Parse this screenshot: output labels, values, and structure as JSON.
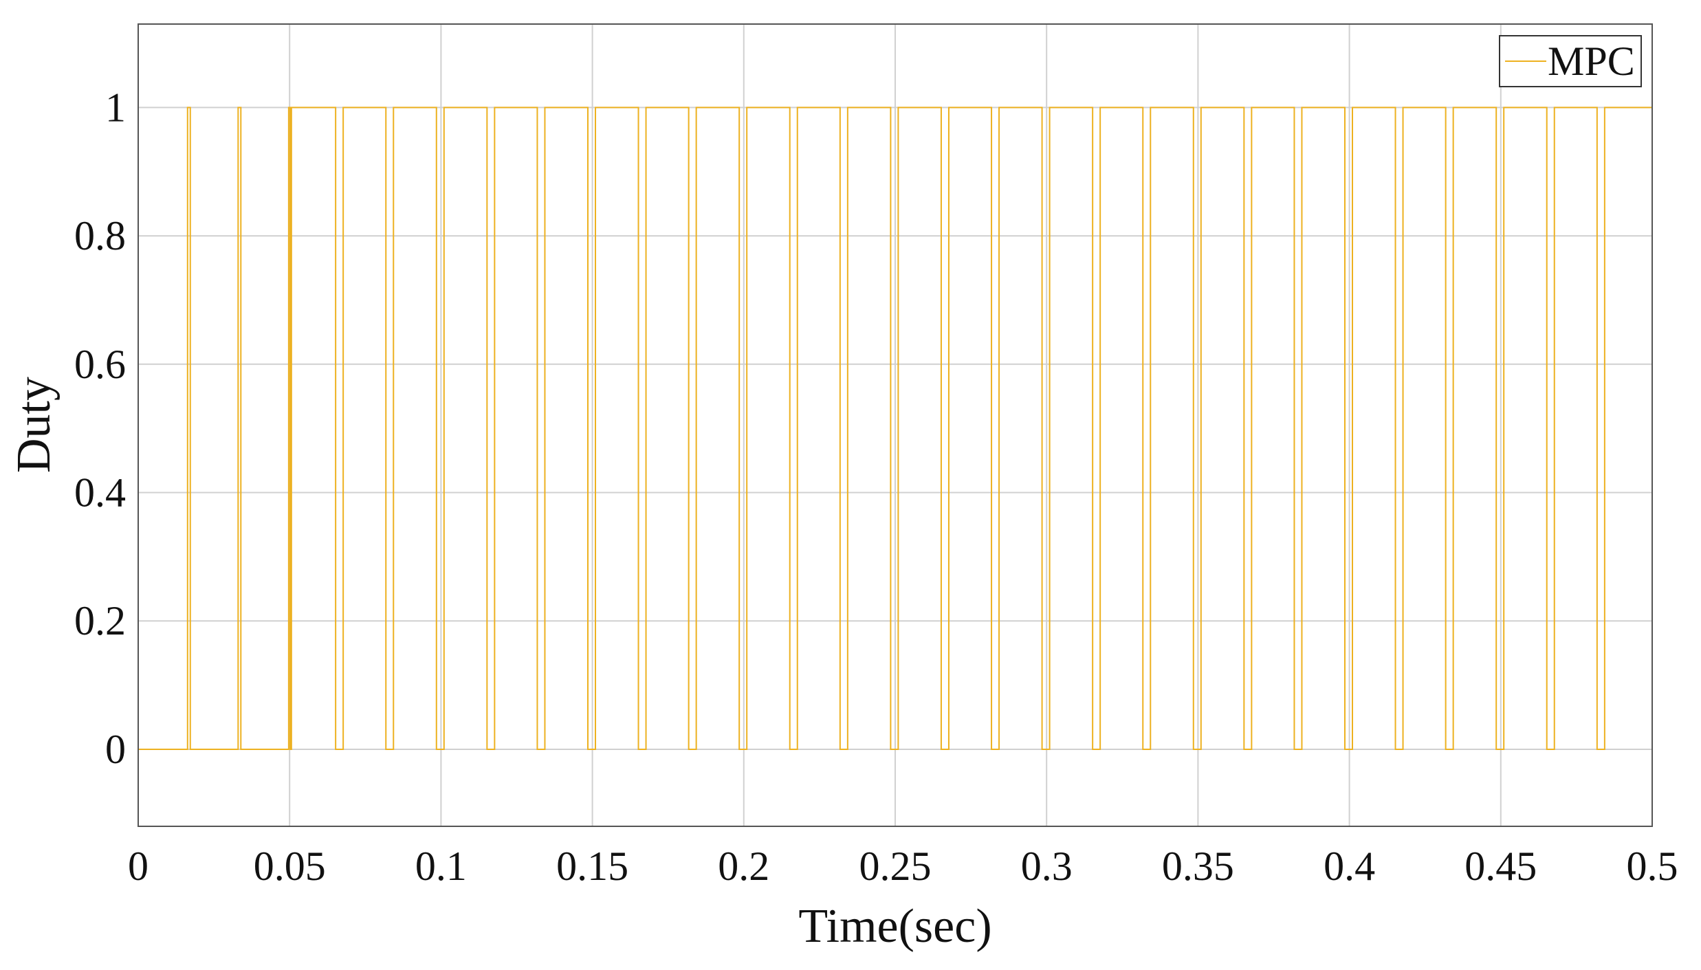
{
  "chart_data": {
    "type": "line",
    "xlabel": "Time(sec)",
    "ylabel": "Duty",
    "xlim": [
      0,
      0.5
    ],
    "ylim": [
      -0.12,
      1.13
    ],
    "xticks": [
      0,
      0.05,
      0.1,
      0.15,
      0.2,
      0.25,
      0.3,
      0.35,
      0.4,
      0.45,
      0.5
    ],
    "yticks": [
      0,
      0.2,
      0.4,
      0.6,
      0.8,
      1
    ],
    "grid": true,
    "legend": "upper right",
    "x": [
      0,
      0,
      0.0163,
      0.0163,
      0.0172,
      0.0172,
      0.033,
      0.033,
      0.0339,
      0.0339,
      0.0497,
      0.0497,
      0.0502,
      0.0502,
      0.0506,
      0.0506,
      0.0652,
      0.0652,
      0.0677,
      0.0677,
      0.0818,
      0.0818,
      0.0843,
      0.0843,
      0.0985,
      0.0985,
      0.101,
      0.101,
      0.1152,
      0.1152,
      0.1177,
      0.1177,
      0.1318,
      0.1318,
      0.1343,
      0.1343,
      0.1485,
      0.1485,
      0.151,
      0.151,
      0.1652,
      0.1652,
      0.1677,
      0.1677,
      0.1818,
      0.1818,
      0.1843,
      0.1843,
      0.1985,
      0.1985,
      0.201,
      0.201,
      0.2152,
      0.2152,
      0.2177,
      0.2177,
      0.2318,
      0.2318,
      0.2343,
      0.2343,
      0.2485,
      0.2485,
      0.251,
      0.251,
      0.2652,
      0.2652,
      0.2677,
      0.2677,
      0.2818,
      0.2818,
      0.2843,
      0.2843,
      0.2985,
      0.2985,
      0.301,
      0.301,
      0.3152,
      0.3152,
      0.3177,
      0.3177,
      0.3318,
      0.3318,
      0.3343,
      0.3343,
      0.3485,
      0.3485,
      0.351,
      0.351,
      0.3652,
      0.3652,
      0.3677,
      0.3677,
      0.3818,
      0.3818,
      0.3843,
      0.3843,
      0.3985,
      0.3985,
      0.401,
      0.401,
      0.4152,
      0.4152,
      0.4177,
      0.4177,
      0.4318,
      0.4318,
      0.4343,
      0.4343,
      0.4485,
      0.4485,
      0.451,
      0.451,
      0.4652,
      0.4652,
      0.4677,
      0.4677,
      0.4818,
      0.4818,
      0.4843,
      0.4843,
      0.5
    ],
    "series": [
      {
        "name": "MPC",
        "color": "#edb120",
        "values": [
          1,
          0,
          0,
          1,
          1,
          0,
          0,
          1,
          1,
          0,
          0,
          1,
          1,
          0,
          0,
          1,
          1,
          0,
          0,
          1,
          1,
          0,
          0,
          1,
          1,
          0,
          0,
          1,
          1,
          0,
          0,
          1,
          1,
          0,
          0,
          1,
          1,
          0,
          0,
          1,
          1,
          0,
          0,
          1,
          1,
          0,
          0,
          1,
          1,
          0,
          0,
          1,
          1,
          0,
          0,
          1,
          1,
          0,
          0,
          1,
          1,
          0,
          0,
          1,
          1,
          0,
          0,
          1,
          1,
          0,
          0,
          1,
          1,
          0,
          0,
          1,
          1,
          0,
          0,
          1,
          1,
          0,
          0,
          1,
          1,
          0,
          0,
          1,
          1,
          0,
          0,
          1,
          1,
          0,
          0,
          1,
          1,
          0,
          0,
          1,
          1,
          0,
          0,
          1,
          1,
          0,
          0,
          1,
          1,
          0,
          0,
          1,
          1,
          0,
          0,
          1,
          1,
          0,
          0,
          1,
          1
        ]
      }
    ]
  }
}
